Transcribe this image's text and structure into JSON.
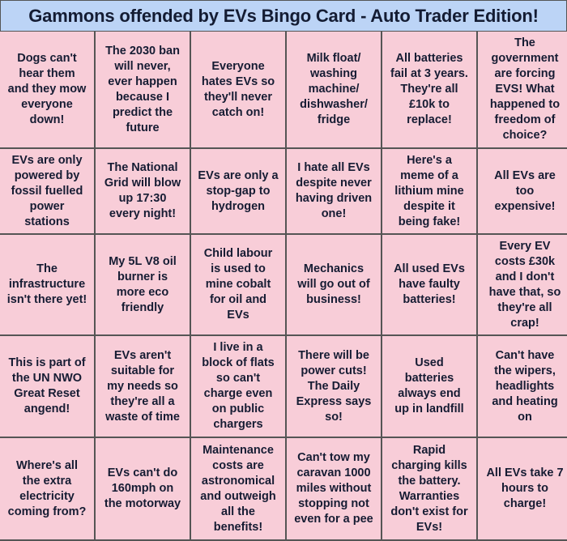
{
  "title": "Gammons offended by EVs Bingo Card - Auto Trader Edition!",
  "colors": {
    "title_bg": "#bcd4f6",
    "cell_bg": "#f8cdd8",
    "text": "#161c33",
    "border": "#555555"
  },
  "cells": [
    "Dogs can't\nhear them\nand they mow\neveryone\ndown!",
    "The 2030 ban\nwill never,\never happen\nbecause I\npredict the\nfuture",
    "Everyone\nhates EVs so\nthey'll never\ncatch on!",
    "Milk float/\nwashing\nmachine/\ndishwasher/\nfridge",
    "All batteries\nfail at 3 years.\nThey're all\n£10k to\nreplace!",
    "The\ngovernment\nare forcing\nEVS! What\nhappened to\nfreedom of\nchoice?",
    "EVs are only\npowered by\nfossil fuelled\npower\nstations",
    "The National\nGrid will blow\nup 17:30\nevery night!",
    "EVs are only a\nstop-gap to\nhydrogen",
    "I hate all EVs\ndespite never\nhaving driven\none!",
    "Here's a\nmeme of a\nlithium mine\ndespite it\nbeing fake!",
    "All EVs are\ntoo\nexpensive!",
    "The\ninfrastructure\nisn't there yet!",
    "My 5L V8 oil\nburner is\nmore eco\nfriendly",
    "Child labour\nis used to\nmine cobalt\nfor oil and\nEVs",
    "Mechanics\nwill go out of\nbusiness!",
    "All used EVs\nhave faulty\nbatteries!",
    "Every EV\ncosts £30k\nand I don't\nhave that, so\nthey're all\ncrap!",
    "This is part of\nthe UN NWO\nGreat Reset\nangend!",
    "EVs aren't\nsuitable for\nmy needs so\nthey're all a\nwaste of time",
    "I live in a\nblock of flats\nso can't\ncharge even\non public\nchargers",
    "There will be\npower cuts!\nThe Daily\nExpress says\nso!",
    "Used\nbatteries\nalways end\nup in landfill",
    "Can't have\nthe wipers,\nheadlights\nand heating\non",
    "Where's all\nthe extra\nelectricity\ncoming from?",
    "EVs can't do\n160mph on\nthe motorway",
    "Maintenance\ncosts are\nastronomical\nand outweigh\nall the\nbenefits!",
    "Can't tow my\ncaravan 1000\nmiles without\nstopping not\neven for a pee",
    "Rapid\ncharging kills\nthe battery.\nWarranties\ndon't exist for\nEVs!",
    "All EVs take 7\nhours to\ncharge!"
  ]
}
